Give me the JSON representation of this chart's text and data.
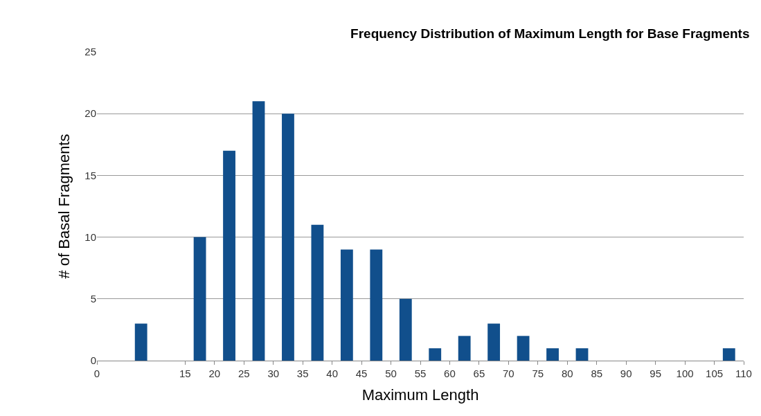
{
  "chart_data": {
    "type": "bar",
    "title": "Frequency Distribution of Maximum Length for Base Fragments",
    "xlabel": "Maximum Length",
    "ylabel": "# of Basal Fragments",
    "x": [
      7.5,
      17.5,
      22.5,
      27.5,
      32.5,
      37.5,
      42.5,
      47.5,
      52.5,
      57.5,
      62.5,
      67.5,
      72.5,
      77.5,
      82.5,
      87.5,
      92.5,
      97.5,
      102.5,
      107.5
    ],
    "values": [
      3,
      10,
      17,
      21,
      20,
      11,
      9,
      9,
      5,
      1,
      2,
      3,
      2,
      1,
      1,
      0,
      0,
      0,
      0,
      1
    ],
    "xlim": [
      0,
      110
    ],
    "xticks": [
      0,
      15,
      20,
      25,
      30,
      35,
      40,
      45,
      50,
      55,
      60,
      65,
      70,
      75,
      80,
      85,
      90,
      95,
      100,
      105,
      110
    ],
    "color": "#114f8c",
    "ylim": [
      0,
      25
    ],
    "yticks": [
      0,
      5,
      10,
      15,
      20,
      25
    ],
    "grid": "y"
  }
}
